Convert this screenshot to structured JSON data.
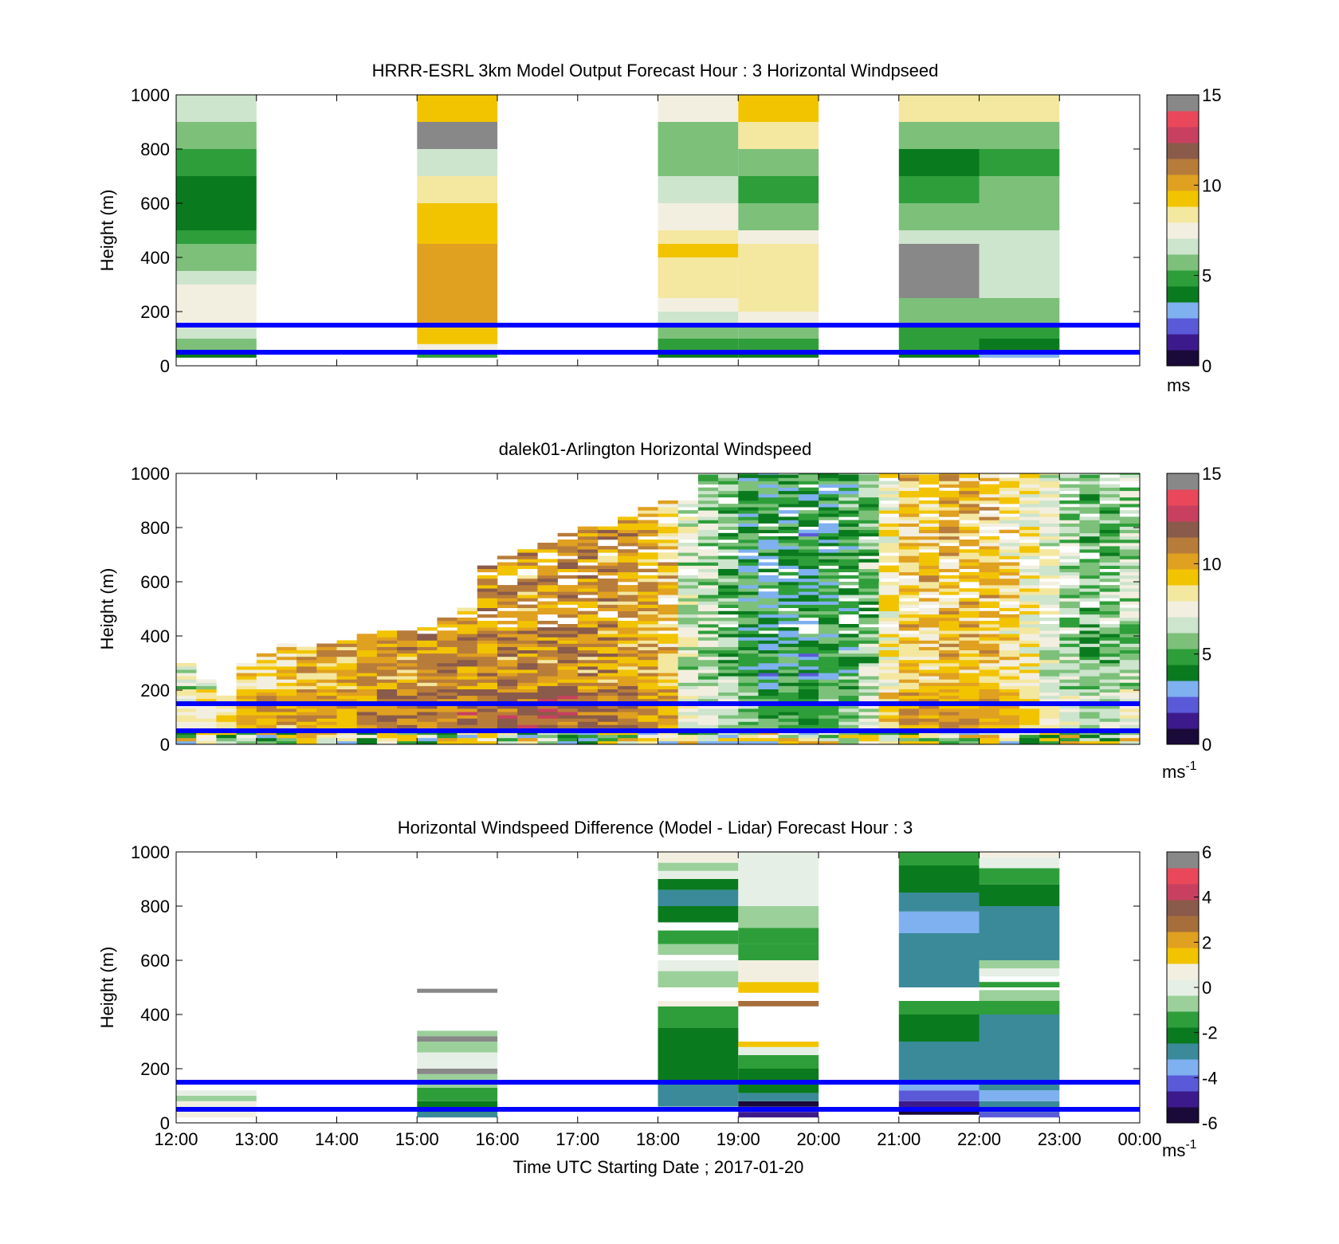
{
  "colors": {
    "axis": "#000000",
    "reference_line": "#0000ff",
    "cmap_speed": [
      "#1a0a3a",
      "#3d1a8c",
      "#5a5ad8",
      "#7fb0f0",
      "#0a7a1e",
      "#2e9e3a",
      "#7cc07a",
      "#cde4cd",
      "#f3efe0",
      "#f4e7a0",
      "#f2c400",
      "#e0a020",
      "#b87c3a",
      "#8a5a4a",
      "#c84060",
      "#e8485a",
      "#888888"
    ],
    "cmap_diff": [
      "#1a0a3a",
      "#3d1a8c",
      "#5a5ad8",
      "#7fb0f0",
      "#3a8a9a",
      "#0a7a1e",
      "#2e9e3a",
      "#9bd09b",
      "#e6efe6",
      "#f3efe0",
      "#f2c400",
      "#e0a020",
      "#a66e3a",
      "#8a5a4a",
      "#c84060",
      "#e8485a",
      "#888888"
    ]
  },
  "xaxis": {
    "label": "Time UTC  Starting Date ; 2017-01-20",
    "ticks": [
      "12:00",
      "13:00",
      "14:00",
      "15:00",
      "16:00",
      "17:00",
      "18:00",
      "19:00",
      "20:00",
      "21:00",
      "22:00",
      "23:00",
      "00:00"
    ]
  },
  "chart_data": [
    {
      "type": "heatmap",
      "title": "HRRR-ESRL 3km Model Output   Forecast Hour : 3 Horizontal Windpseed",
      "ylabel": "Height (m)",
      "ylim": [
        0,
        1000
      ],
      "yticks": [
        "0",
        "200",
        "400",
        "600",
        "800",
        "1000"
      ],
      "x_range_hours": [
        12,
        24
      ],
      "reference_lines_m": [
        50,
        150
      ],
      "colorbar": {
        "range": [
          0,
          15
        ],
        "ticks": [
          "0",
          "5",
          "10",
          "15"
        ],
        "unit_label": "ms"
      },
      "columns": [
        {
          "t": [
            12,
            13
          ],
          "z": [
            [
              30,
              45,
              4.0
            ],
            [
              45,
              60,
              5.0
            ],
            [
              60,
              100,
              6.5
            ],
            [
              100,
              140,
              7.0
            ],
            [
              140,
              200,
              7.5
            ],
            [
              200,
              300,
              7.7
            ],
            [
              300,
              350,
              7.2
            ],
            [
              350,
              400,
              6.3
            ],
            [
              400,
              450,
              6.2
            ],
            [
              450,
              500,
              5.5
            ],
            [
              500,
              700,
              4.5
            ],
            [
              700,
              800,
              5.2
            ],
            [
              800,
              900,
              6.2
            ],
            [
              900,
              1000,
              7.3
            ]
          ]
        },
        {
          "t": [
            15,
            16
          ],
          "z": [
            [
              30,
              50,
              5.5
            ],
            [
              50,
              80,
              7.7
            ],
            [
              80,
              150,
              9.5
            ],
            [
              150,
              450,
              10.5
            ],
            [
              450,
              500,
              10.2
            ],
            [
              500,
              600,
              9.8
            ],
            [
              600,
              700,
              8.5
            ],
            [
              700,
              800,
              7.4
            ],
            [
              800,
              900,
              15.5
            ],
            [
              900,
              1000,
              9.5
            ]
          ]
        },
        {
          "t": [
            18,
            19
          ],
          "z": [
            [
              30,
              50,
              4.2
            ],
            [
              50,
              100,
              5.2
            ],
            [
              100,
              150,
              6.2
            ],
            [
              150,
              200,
              6.8
            ],
            [
              200,
              250,
              7.8
            ],
            [
              250,
              300,
              8.5
            ],
            [
              300,
              400,
              9.3
            ],
            [
              400,
              450,
              9.5
            ],
            [
              450,
              500,
              8.5
            ],
            [
              500,
              600,
              7.7
            ],
            [
              600,
              700,
              6.8
            ],
            [
              700,
              900,
              5.8
            ],
            [
              900,
              1000,
              7.5
            ]
          ]
        },
        {
          "t": [
            19,
            20
          ],
          "z": [
            [
              30,
              50,
              4.2
            ],
            [
              50,
              100,
              5.2
            ],
            [
              100,
              150,
              6.5
            ],
            [
              150,
              200,
              8.0
            ],
            [
              200,
              250,
              8.7
            ],
            [
              250,
              450,
              9.3
            ],
            [
              450,
              500,
              7.6
            ],
            [
              500,
              600,
              6.2
            ],
            [
              600,
              700,
              4.8
            ],
            [
              700,
              800,
              5.8
            ],
            [
              800,
              900,
              9.3
            ],
            [
              900,
              1000,
              10.3
            ]
          ]
        },
        {
          "t": [
            21,
            22
          ],
          "z": [
            [
              30,
              50,
              4.0
            ],
            [
              50,
              100,
              4.7
            ],
            [
              100,
              150,
              5.4
            ],
            [
              150,
              250,
              6.5
            ],
            [
              250,
              450,
              15.5
            ],
            [
              450,
              500,
              7.1
            ],
            [
              500,
              600,
              6.2
            ],
            [
              600,
              700,
              5.6
            ],
            [
              700,
              800,
              4.6
            ],
            [
              800,
              900,
              6.3
            ],
            [
              900,
              1000,
              9.3
            ]
          ]
        },
        {
          "t": [
            22,
            23
          ],
          "z": [
            [
              30,
              50,
              3.3
            ],
            [
              50,
              100,
              4.5
            ],
            [
              100,
              150,
              5.2
            ],
            [
              150,
              200,
              5.8
            ],
            [
              200,
              250,
              6.4
            ],
            [
              250,
              450,
              7.0
            ],
            [
              450,
              500,
              7.2
            ],
            [
              500,
              600,
              6.3
            ],
            [
              600,
              700,
              6.0
            ],
            [
              700,
              800,
              4.8
            ],
            [
              800,
              900,
              6.3
            ],
            [
              900,
              1000,
              9.3
            ]
          ]
        }
      ]
    },
    {
      "type": "heatmap",
      "title": "dalek01-Arlington  Horizontal Windspeed",
      "ylabel": "Height (m)",
      "ylim": [
        0,
        1000
      ],
      "yticks": [
        "0",
        "200",
        "400",
        "600",
        "800",
        "1000"
      ],
      "x_range_hours": [
        12,
        24
      ],
      "reference_lines_m": [
        50,
        150
      ],
      "colorbar": {
        "range": [
          0,
          15
        ],
        "ticks": [
          "0",
          "5",
          "10",
          "15"
        ],
        "unit_label": "ms",
        "unit_exponent": "-1"
      },
      "column_hours": [
        12.0,
        12.25,
        12.5,
        12.75,
        13.0,
        13.25,
        13.5,
        13.75,
        14.0,
        14.25,
        14.5,
        14.75,
        15.0,
        15.25,
        15.5,
        15.75,
        16.0,
        16.25,
        16.5,
        16.75,
        17.0,
        17.25,
        17.5,
        17.75,
        18.0,
        18.25,
        18.5,
        18.75,
        19.0,
        19.25,
        19.5,
        19.75,
        20.0,
        20.25,
        20.5,
        20.75,
        21.0,
        21.25,
        21.5,
        21.75,
        22.0,
        22.25,
        22.5,
        22.75,
        23.0,
        23.25,
        23.5,
        23.75
      ],
      "column_tops_m": [
        300,
        230,
        170,
        300,
        330,
        370,
        350,
        370,
        380,
        400,
        410,
        420,
        430,
        470,
        500,
        650,
        690,
        720,
        740,
        770,
        800,
        800,
        850,
        870,
        900,
        900,
        1000,
        1000,
        1000,
        1000,
        1000,
        1000,
        1000,
        1000,
        1000,
        1000,
        1000,
        1000,
        1000,
        1000,
        1000,
        1000,
        1000,
        1000,
        1000,
        1000,
        1000,
        1000
      ],
      "column_mean_speed": [
        7.0,
        7.5,
        8.0,
        9.0,
        9.3,
        9.6,
        9.8,
        10.0,
        10.2,
        10.4,
        10.6,
        10.6,
        10.7,
        10.9,
        10.9,
        11.0,
        11.0,
        11.0,
        11.1,
        11.2,
        11.0,
        10.8,
        10.6,
        10.2,
        9.6,
        7.2,
        6.5,
        5.8,
        4.8,
        4.5,
        4.6,
        4.2,
        4.6,
        5.2,
        6.2,
        8.5,
        9.6,
        9.8,
        10.0,
        9.9,
        9.6,
        9.0,
        8.4,
        7.6,
        6.6,
        5.8,
        6.0,
        6.6
      ]
    },
    {
      "type": "heatmap",
      "title": "Horizontal Windspeed Difference (Model - Lidar) Forecast Hour : 3",
      "ylabel": "Height (m)",
      "ylim": [
        0,
        1000
      ],
      "yticks": [
        "0",
        "200",
        "400",
        "600",
        "800",
        "1000"
      ],
      "x_range_hours": [
        12,
        24
      ],
      "reference_lines_m": [
        50,
        150
      ],
      "colorbar": {
        "range": [
          -6,
          6
        ],
        "ticks": [
          "-6",
          "-4",
          "-2",
          "0",
          "2",
          "4",
          "6"
        ],
        "unit_label": "ms",
        "unit_exponent": "-1"
      },
      "columns": [
        {
          "t": [
            12,
            13
          ],
          "z": [
            [
              20,
              40,
              1.2
            ],
            [
              40,
              60,
              0.5
            ],
            [
              60,
              80,
              1.0
            ],
            [
              80,
              100,
              -0.5
            ],
            [
              100,
              120,
              0.3
            ]
          ]
        },
        {
          "t": [
            15,
            16
          ],
          "z": [
            [
              480,
              495,
              6.5
            ],
            [
              20,
              40,
              -2.5
            ],
            [
              40,
              80,
              -1.6
            ],
            [
              80,
              130,
              -1.0
            ],
            [
              130,
              180,
              -0.4
            ],
            [
              180,
              200,
              6.5
            ],
            [
              200,
              220,
              0.2
            ],
            [
              220,
              260,
              0.5
            ],
            [
              260,
              300,
              -0.2
            ],
            [
              300,
              320,
              6.5
            ],
            [
              320,
              340,
              -0.3
            ]
          ]
        },
        {
          "t": [
            18,
            19
          ],
          "z": [
            [
              60,
              150,
              -2.6
            ],
            [
              150,
              250,
              -2.2
            ],
            [
              250,
              350,
              -1.8
            ],
            [
              350,
              430,
              -1.3
            ],
            [
              430,
              450,
              1.0
            ],
            [
              500,
              560,
              -0.4
            ],
            [
              560,
              600,
              0.3
            ],
            [
              620,
              660,
              -0.6
            ],
            [
              660,
              710,
              -1.5
            ],
            [
              740,
              800,
              -2.0
            ],
            [
              800,
              860,
              -2.4
            ],
            [
              860,
              900,
              -1.8
            ],
            [
              900,
              930,
              0.5
            ],
            [
              930,
              960,
              -0.6
            ],
            [
              960,
              1000,
              1.0
            ]
          ]
        },
        {
          "t": [
            19,
            20
          ],
          "z": [
            [
              20,
              40,
              -5.0
            ],
            [
              40,
              60,
              -3.8
            ],
            [
              60,
              80,
              -5.5
            ],
            [
              80,
              110,
              -2.8
            ],
            [
              110,
              150,
              -2.2
            ],
            [
              150,
              200,
              -1.6
            ],
            [
              200,
              250,
              -0.8
            ],
            [
              250,
              280,
              0.2
            ],
            [
              280,
              300,
              1.5
            ],
            [
              430,
              450,
              3.6
            ],
            [
              480,
              520,
              2.2
            ],
            [
              520,
              560,
              1.4
            ],
            [
              560,
              600,
              0.8
            ],
            [
              600,
              660,
              -1.4
            ],
            [
              660,
              720,
              -0.8
            ],
            [
              720,
              800,
              -0.3
            ],
            [
              800,
              900,
              0.3
            ],
            [
              900,
              960,
              0.5
            ],
            [
              960,
              1000,
              0.2
            ]
          ]
        },
        {
          "t": [
            21,
            22
          ],
          "z": [
            [
              30,
              50,
              -5.8
            ],
            [
              50,
              80,
              -5.0
            ],
            [
              80,
              120,
              -4.2
            ],
            [
              120,
              150,
              -3.6
            ],
            [
              150,
              300,
              -2.6
            ],
            [
              300,
              350,
              -2.0
            ],
            [
              350,
              400,
              -1.6
            ],
            [
              400,
              450,
              -0.8
            ],
            [
              500,
              600,
              -2.6
            ],
            [
              600,
              700,
              -2.6
            ],
            [
              700,
              780,
              -3.5
            ],
            [
              780,
              850,
              -2.4
            ],
            [
              850,
              900,
              -1.6
            ],
            [
              900,
              950,
              -1.8
            ],
            [
              950,
              1000,
              -1.0
            ]
          ]
        },
        {
          "t": [
            22,
            23
          ],
          "z": [
            [
              20,
              40,
              -4.0
            ],
            [
              40,
              80,
              -2.8
            ],
            [
              80,
              120,
              -3.2
            ],
            [
              120,
              300,
              -3.0
            ],
            [
              300,
              400,
              -2.6
            ],
            [
              400,
              450,
              -1.0
            ],
            [
              450,
              490,
              -0.4
            ],
            [
              500,
              520,
              -1.4
            ],
            [
              540,
              570,
              0.6
            ],
            [
              570,
              600,
              -0.2
            ],
            [
              600,
              700,
              -2.6
            ],
            [
              700,
              800,
              -3.0
            ],
            [
              800,
              880,
              -2.2
            ],
            [
              880,
              940,
              -1.0
            ],
            [
              940,
              980,
              0.4
            ],
            [
              980,
              1000,
              1.4
            ]
          ]
        }
      ]
    }
  ]
}
